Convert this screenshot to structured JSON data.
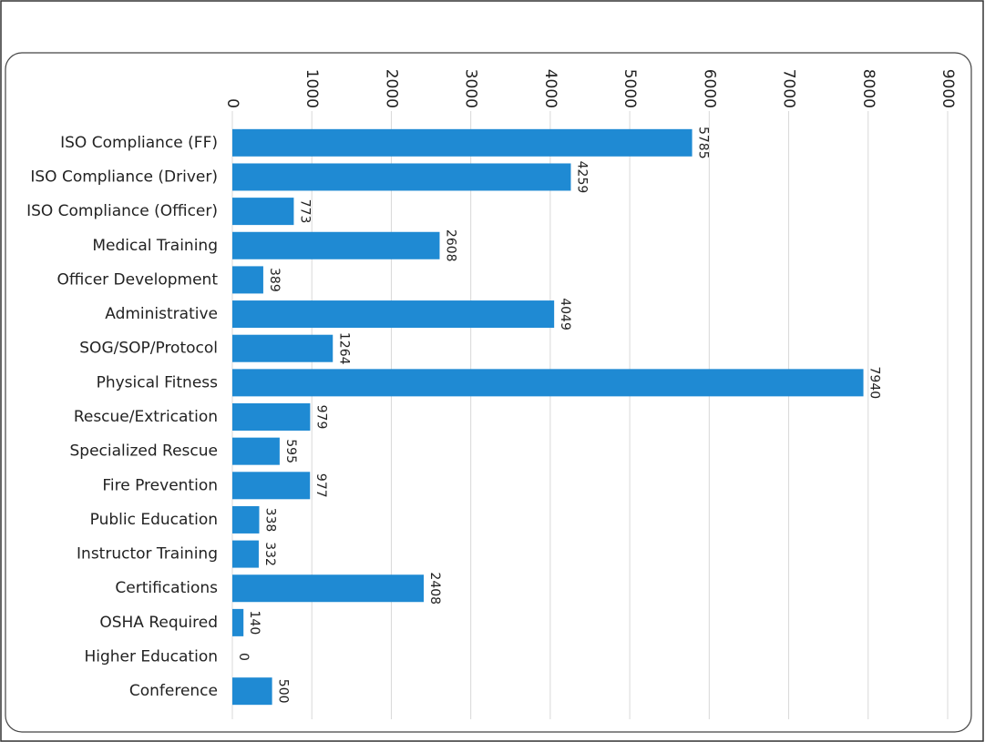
{
  "chart_data": {
    "type": "bar",
    "orientation": "horizontal",
    "categories": [
      "ISO Compliance (FF)",
      "ISO Compliance (Driver)",
      "ISO Compliance (Officer)",
      "Medical Training",
      "Officer Development",
      "Administrative",
      "SOG/SOP/Protocol",
      "Physical Fitness",
      "Rescue/Extrication",
      "Specialized Rescue",
      "Fire Prevention",
      "Public Education",
      "Instructor Training",
      "Certifications",
      "OSHA Required",
      "Higher Education",
      "Conference"
    ],
    "values": [
      5785,
      4259,
      773,
      2608,
      389,
      4049,
      1264,
      7940,
      979,
      595,
      977,
      338,
      332,
      2408,
      140,
      0,
      500
    ],
    "color": "#1f8ad3",
    "xlim": [
      0,
      9000
    ],
    "xticks": [
      0,
      1000,
      2000,
      3000,
      4000,
      5000,
      6000,
      7000,
      8000,
      9000
    ],
    "grid": true
  }
}
